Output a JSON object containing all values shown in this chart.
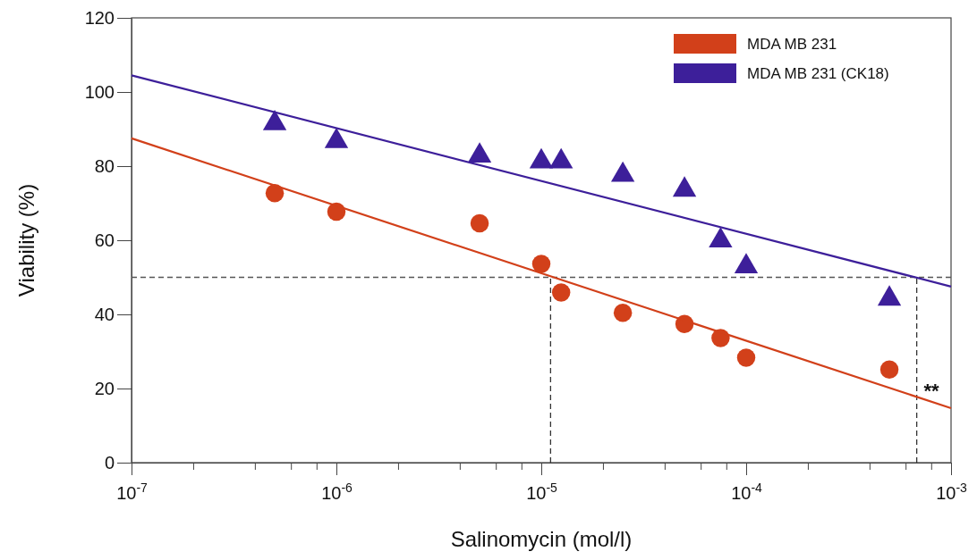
{
  "chart_data": {
    "type": "scatter",
    "xlabel": "Salinomycin (mol/l)",
    "ylabel": "Viability (%)",
    "log": "x",
    "xlim": [
      1e-07,
      0.001
    ],
    "ylim": [
      0,
      120
    ],
    "yticks": [
      0,
      20,
      40,
      60,
      80,
      100,
      120
    ],
    "xticks": [
      {
        "value": 1e-07,
        "label": "10$^{-7}$"
      },
      {
        "value": 2e-07,
        "label": null
      },
      {
        "value": 4e-07,
        "label": null
      },
      {
        "value": 6e-07,
        "label": null
      },
      {
        "value": 8e-07,
        "label": null
      },
      {
        "value": 1e-06,
        "label": "10$^{-6}$"
      },
      {
        "value": 2e-06,
        "label": null
      },
      {
        "value": 4e-06,
        "label": null
      },
      {
        "value": 6e-06,
        "label": null
      },
      {
        "value": 8e-06,
        "label": null
      },
      {
        "value": 1e-05,
        "label": "10$^{-5}$"
      },
      {
        "value": 2e-05,
        "label": null
      },
      {
        "value": 4e-05,
        "label": null
      },
      {
        "value": 6e-05,
        "label": null
      },
      {
        "value": 8e-05,
        "label": null
      },
      {
        "value": 0.0001,
        "label": "10$^{-4}$"
      },
      {
        "value": 0.0002,
        "label": null
      },
      {
        "value": 0.0004,
        "label": null
      },
      {
        "value": 0.0006,
        "label": null
      },
      {
        "value": 0.0008,
        "label": null
      },
      {
        "value": 0.001,
        "label": "10$^{-3}$"
      }
    ],
    "grid": false,
    "legend": "top right",
    "series": [
      {
        "name": "MDA MB 231",
        "marker": "circle",
        "color": "#d2401a",
        "x": [
          5e-07,
          1e-06,
          5e-06,
          1e-05,
          1.25e-05,
          2.5e-05,
          5e-05,
          7.5e-05,
          0.0001,
          0.0005
        ],
        "values": [
          72.7,
          67.7,
          64.6,
          53.6,
          45.9,
          40.4,
          37.4,
          33.6,
          28.3,
          25.1
        ]
      },
      {
        "name": "MDA MB 231 (CK18)",
        "marker": "triangle",
        "color": "#3d1f9a",
        "x": [
          5e-07,
          1e-06,
          5e-06,
          1e-05,
          1.25e-05,
          2.5e-05,
          5e-05,
          7.5e-05,
          0.0001,
          0.0005
        ],
        "values": [
          91.5,
          86.7,
          82.8,
          81.2,
          81.2,
          77.6,
          73.6,
          59.9,
          52.9,
          44.2
        ]
      },
      {
        "type": "line",
        "color": "#d2401a",
        "line_style": "solid",
        "x": [
          1e-07,
          0.001
        ],
        "values": [
          87.5,
          14.7
        ]
      },
      {
        "type": "line",
        "color": "#3d1f9a",
        "line_style": "solid",
        "x": [
          1e-07,
          0.001
        ],
        "values": [
          104.5,
          47.5
        ]
      }
    ],
    "ref_lines": [
      {
        "axis": "y",
        "value": 50,
        "color": "#555555",
        "line_style": "dashed"
      },
      {
        "axis": "x",
        "value": 1.11e-05,
        "color": "#333333",
        "line_style": "dashed"
      },
      {
        "axis": "x",
        "value": 0.00068,
        "color": "#333333",
        "line_style": "dashed"
      }
    ],
    "annotations": [
      "**"
    ]
  }
}
